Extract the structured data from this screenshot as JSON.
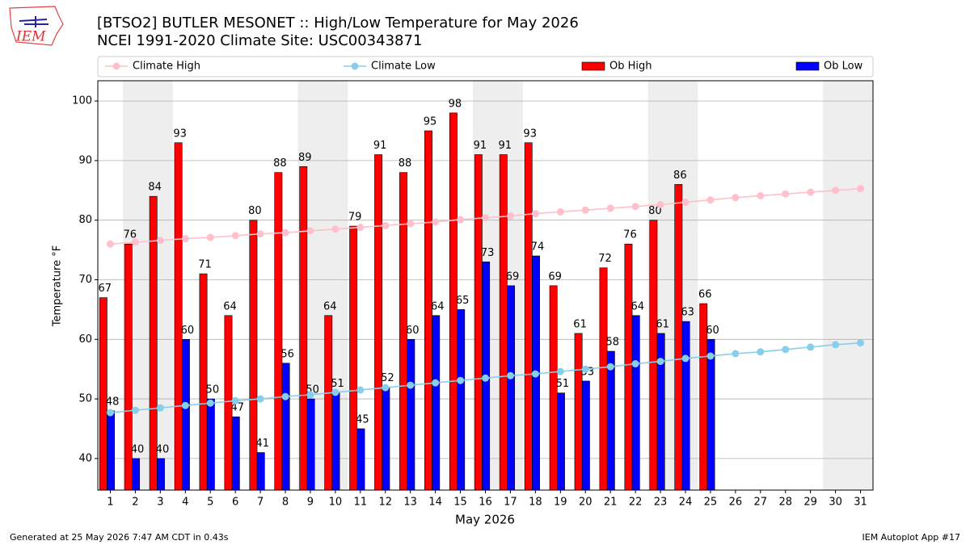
{
  "logo_text": "IEM",
  "footer_left": "Generated at 25 May 2026 7:47 AM CDT in 0.43s",
  "footer_right": "IEM Autoplot App #17",
  "chart_data": {
    "type": "bar",
    "title": "[BTSO2] BUTLER MESONET :: High/Low Temperature for May 2026",
    "subtitle": "NCEI 1991-2020 Climate Site: USC00343871",
    "xlabel": "May 2026",
    "ylabel": "Temperature °F",
    "x": [
      1,
      2,
      3,
      4,
      5,
      6,
      7,
      8,
      9,
      10,
      11,
      12,
      13,
      14,
      15,
      16,
      17,
      18,
      19,
      20,
      21,
      22,
      23,
      24,
      25,
      26,
      27,
      28,
      29,
      30,
      31
    ],
    "xlim": [
      0.5,
      31.5
    ],
    "xticks": [
      1,
      2,
      3,
      4,
      5,
      6,
      7,
      8,
      9,
      10,
      11,
      12,
      13,
      14,
      15,
      16,
      17,
      18,
      19,
      20,
      21,
      22,
      23,
      24,
      25,
      26,
      27,
      28,
      29,
      30,
      31
    ],
    "ylim": [
      34.7,
      103.4
    ],
    "yticks": [
      40,
      50,
      60,
      70,
      80,
      90,
      100
    ],
    "grid": true,
    "legend": "top",
    "weekend_shade": [
      2,
      9,
      16,
      23,
      30
    ],
    "shade_color": "#eeeeee",
    "series": [
      {
        "name": "Climate High",
        "type": "line",
        "color": "#ffc0cb",
        "values": [
          76.0,
          76.3,
          76.6,
          76.9,
          77.1,
          77.4,
          77.7,
          77.9,
          78.2,
          78.5,
          78.8,
          79.1,
          79.4,
          79.7,
          80.1,
          80.4,
          80.7,
          81.1,
          81.4,
          81.7,
          82.0,
          82.3,
          82.6,
          83.0,
          83.4,
          83.8,
          84.1,
          84.4,
          84.7,
          85.0,
          85.3
        ]
      },
      {
        "name": "Climate Low",
        "type": "line",
        "color": "#87ceeb",
        "values": [
          47.7,
          48.1,
          48.5,
          48.9,
          49.3,
          49.7,
          50.0,
          50.4,
          50.7,
          51.1,
          51.5,
          51.9,
          52.3,
          52.7,
          53.1,
          53.5,
          53.9,
          54.2,
          54.6,
          55.0,
          55.4,
          55.9,
          56.3,
          56.8,
          57.2,
          57.6,
          57.9,
          58.3,
          58.7,
          59.1,
          59.4
        ]
      },
      {
        "name": "Ob High",
        "type": "bar",
        "color": "#ff0000",
        "values": [
          67,
          76,
          84,
          93,
          71,
          64,
          80,
          88,
          89,
          64,
          79,
          91,
          88,
          95,
          98,
          91,
          91,
          93,
          69,
          61,
          72,
          76,
          80,
          86,
          66,
          null,
          null,
          null,
          null,
          null,
          null
        ]
      },
      {
        "name": "Ob Low",
        "type": "bar",
        "color": "#0000ff",
        "values": [
          48,
          40,
          40,
          60,
          50,
          47,
          41,
          56,
          50,
          51,
          45,
          52,
          60,
          64,
          65,
          73,
          69,
          74,
          51,
          53,
          58,
          64,
          61,
          63,
          60,
          null,
          null,
          null,
          null,
          null,
          null
        ]
      }
    ]
  }
}
